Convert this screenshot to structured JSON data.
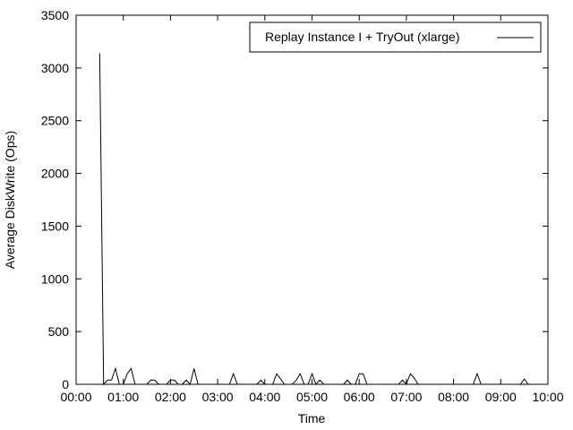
{
  "chart_data": {
    "type": "line",
    "title": "",
    "xlabel": "Time",
    "ylabel": "Average DiskWrite (Ops)",
    "xlim": [
      "00:00",
      "10:00"
    ],
    "ylim": [
      0,
      3500
    ],
    "x_ticks": [
      "00:00",
      "01:00",
      "02:00",
      "03:00",
      "04:00",
      "05:00",
      "06:00",
      "07:00",
      "08:00",
      "09:00",
      "10:00"
    ],
    "y_ticks": [
      0,
      500,
      1000,
      1500,
      2000,
      2500,
      3000,
      3500
    ],
    "grid": false,
    "legend_position": "top-right",
    "series": [
      {
        "name": "Replay Instance I + TryOut (xlarge)",
        "color": "#000000",
        "points": [
          [
            "00:30",
            3140
          ],
          [
            "00:35",
            0
          ],
          [
            "00:40",
            40
          ],
          [
            "00:45",
            40
          ],
          [
            "00:50",
            150
          ],
          [
            "00:55",
            0
          ],
          [
            "01:00",
            0
          ],
          [
            "01:05",
            100
          ],
          [
            "01:10",
            150
          ],
          [
            "01:15",
            0
          ],
          [
            "01:20",
            0
          ],
          [
            "01:25",
            0
          ],
          [
            "01:30",
            0
          ],
          [
            "01:35",
            40
          ],
          [
            "01:40",
            40
          ],
          [
            "01:45",
            0
          ],
          [
            "01:50",
            0
          ],
          [
            "01:55",
            0
          ],
          [
            "02:00",
            40
          ],
          [
            "02:05",
            40
          ],
          [
            "02:10",
            0
          ],
          [
            "02:15",
            0
          ],
          [
            "02:20",
            40
          ],
          [
            "02:25",
            0
          ],
          [
            "02:30",
            150
          ],
          [
            "02:35",
            0
          ],
          [
            "02:40",
            0
          ],
          [
            "02:45",
            0
          ],
          [
            "02:50",
            0
          ],
          [
            "02:55",
            0
          ],
          [
            "03:00",
            0
          ],
          [
            "03:05",
            0
          ],
          [
            "03:10",
            0
          ],
          [
            "03:15",
            0
          ],
          [
            "03:20",
            100
          ],
          [
            "03:25",
            0
          ],
          [
            "03:30",
            0
          ],
          [
            "03:35",
            0
          ],
          [
            "03:40",
            0
          ],
          [
            "03:45",
            0
          ],
          [
            "03:50",
            0
          ],
          [
            "03:55",
            40
          ],
          [
            "04:00",
            0
          ],
          [
            "04:05",
            0
          ],
          [
            "04:10",
            0
          ],
          [
            "04:15",
            100
          ],
          [
            "04:20",
            50
          ],
          [
            "04:25",
            0
          ],
          [
            "04:30",
            0
          ],
          [
            "04:35",
            0
          ],
          [
            "04:40",
            40
          ],
          [
            "04:45",
            100
          ],
          [
            "04:50",
            0
          ],
          [
            "04:55",
            0
          ],
          [
            "05:00",
            100
          ],
          [
            "05:05",
            0
          ],
          [
            "05:10",
            40
          ],
          [
            "05:15",
            0
          ],
          [
            "05:20",
            0
          ],
          [
            "05:25",
            0
          ],
          [
            "05:30",
            0
          ],
          [
            "05:35",
            0
          ],
          [
            "05:40",
            0
          ],
          [
            "05:45",
            40
          ],
          [
            "05:50",
            0
          ],
          [
            "05:55",
            0
          ],
          [
            "06:00",
            100
          ],
          [
            "06:05",
            100
          ],
          [
            "06:10",
            0
          ],
          [
            "06:15",
            0
          ],
          [
            "06:20",
            0
          ],
          [
            "06:25",
            0
          ],
          [
            "06:30",
            0
          ],
          [
            "06:35",
            0
          ],
          [
            "06:40",
            0
          ],
          [
            "06:45",
            0
          ],
          [
            "06:50",
            0
          ],
          [
            "06:55",
            40
          ],
          [
            "07:00",
            0
          ],
          [
            "07:05",
            100
          ],
          [
            "07:10",
            60
          ],
          [
            "07:15",
            0
          ],
          [
            "07:20",
            0
          ],
          [
            "07:25",
            0
          ],
          [
            "07:30",
            0
          ],
          [
            "07:35",
            0
          ],
          [
            "07:40",
            0
          ],
          [
            "07:45",
            0
          ],
          [
            "07:50",
            0
          ],
          [
            "07:55",
            0
          ],
          [
            "08:00",
            0
          ],
          [
            "08:05",
            0
          ],
          [
            "08:10",
            0
          ],
          [
            "08:15",
            0
          ],
          [
            "08:20",
            0
          ],
          [
            "08:25",
            0
          ],
          [
            "08:30",
            100
          ],
          [
            "08:35",
            0
          ],
          [
            "08:40",
            0
          ],
          [
            "08:45",
            0
          ],
          [
            "08:50",
            0
          ],
          [
            "08:55",
            0
          ],
          [
            "09:00",
            0
          ],
          [
            "09:05",
            0
          ],
          [
            "09:10",
            0
          ],
          [
            "09:15",
            0
          ],
          [
            "09:20",
            0
          ],
          [
            "09:25",
            0
          ],
          [
            "09:30",
            50
          ],
          [
            "09:35",
            0
          ]
        ]
      }
    ]
  }
}
